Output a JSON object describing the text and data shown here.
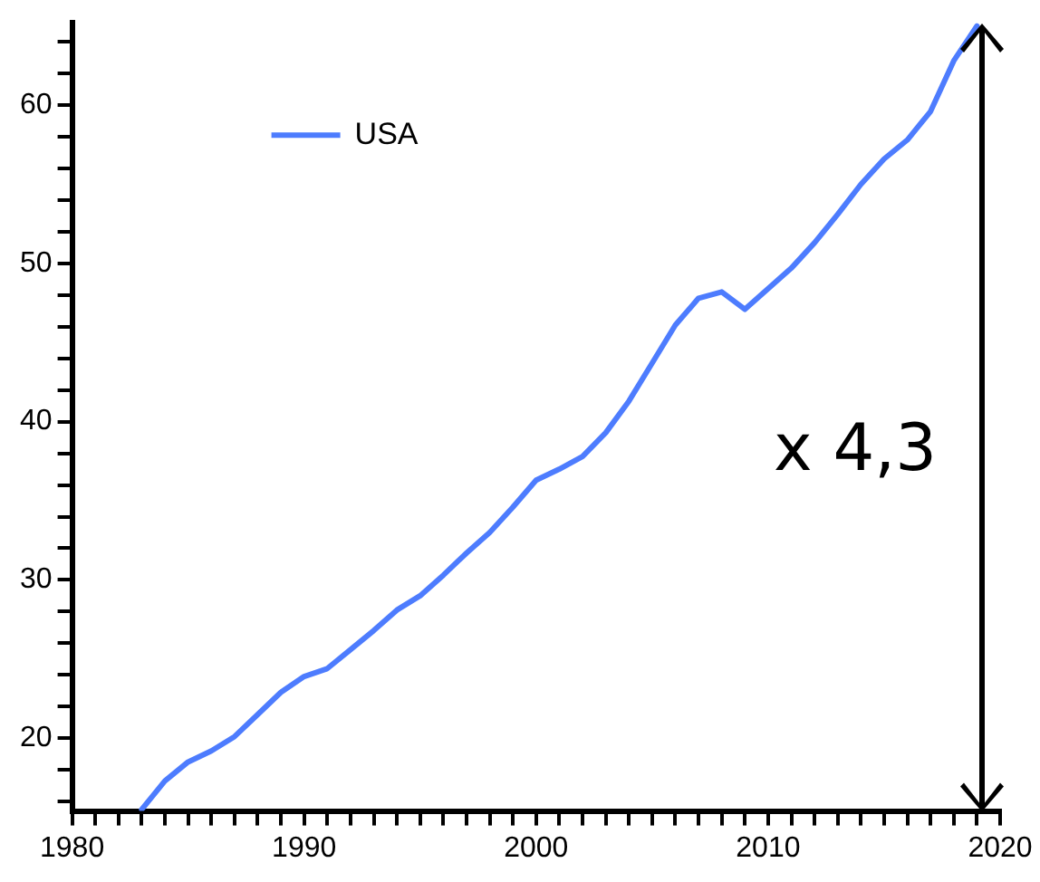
{
  "chart_data": {
    "type": "line",
    "x": [
      1983,
      1984,
      1985,
      1986,
      1987,
      1988,
      1989,
      1990,
      1991,
      1992,
      1993,
      1994,
      1995,
      1996,
      1997,
      1998,
      1999,
      2000,
      2001,
      2002,
      2003,
      2004,
      2005,
      2006,
      2007,
      2008,
      2009,
      2010,
      2011,
      2012,
      2013,
      2014,
      2015,
      2016,
      2017,
      2018,
      2019
    ],
    "series": [
      {
        "name": "USA",
        "color": "#4d7cfe",
        "values": [
          15.5,
          17.3,
          18.5,
          19.2,
          20.1,
          21.5,
          22.9,
          23.9,
          24.4,
          25.6,
          26.8,
          28.1,
          29.0,
          30.3,
          31.7,
          33.0,
          34.6,
          36.3,
          37.0,
          37.8,
          39.3,
          41.3,
          43.7,
          46.1,
          47.8,
          48.2,
          47.1,
          48.4,
          49.7,
          51.3,
          53.1,
          55.0,
          56.6,
          57.8,
          59.6,
          62.8,
          65.0
        ]
      }
    ],
    "xlim": [
      1980,
      2020
    ],
    "xticks": [
      1980,
      {
        "value": 1981,
        "label": null
      },
      {
        "value": 1982,
        "label": null
      },
      {
        "value": 1983,
        "label": null
      },
      {
        "value": 1984,
        "label": null
      },
      {
        "value": 1985,
        "label": null
      },
      {
        "value": 1986,
        "label": null
      },
      {
        "value": 1987,
        "label": null
      },
      {
        "value": 1988,
        "label": null
      },
      {
        "value": 1989,
        "label": null
      },
      1990,
      {
        "value": 1991,
        "label": null
      },
      {
        "value": 1992,
        "label": null
      },
      {
        "value": 1993,
        "label": null
      },
      {
        "value": 1994,
        "label": null
      },
      {
        "value": 1995,
        "label": null
      },
      {
        "value": 1996,
        "label": null
      },
      {
        "value": 1997,
        "label": null
      },
      {
        "value": 1998,
        "label": null
      },
      {
        "value": 1999,
        "label": null
      },
      2000,
      {
        "value": 2001,
        "label": null
      },
      {
        "value": 2002,
        "label": null
      },
      {
        "value": 2003,
        "label": null
      },
      {
        "value": 2004,
        "label": null
      },
      {
        "value": 2005,
        "label": null
      },
      {
        "value": 2006,
        "label": null
      },
      {
        "value": 2007,
        "label": null
      },
      {
        "value": 2008,
        "label": null
      },
      {
        "value": 2009,
        "label": null
      },
      2010,
      {
        "value": 2011,
        "label": null
      },
      {
        "value": 2012,
        "label": null
      },
      {
        "value": 2013,
        "label": null
      },
      {
        "value": 2014,
        "label": null
      },
      {
        "value": 2015,
        "label": null
      },
      {
        "value": 2016,
        "label": null
      },
      {
        "value": 2017,
        "label": null
      },
      {
        "value": 2018,
        "label": null
      },
      {
        "value": 2019,
        "label": null
      },
      2020
    ],
    "ylim": [
      15.4,
      65.2
    ],
    "yticks": [
      {
        "value": 16,
        "label": null
      },
      {
        "value": 18,
        "label": null
      },
      20,
      {
        "value": 22,
        "label": null
      },
      {
        "value": 24,
        "label": null
      },
      {
        "value": 26,
        "label": null
      },
      {
        "value": 28,
        "label": null
      },
      30,
      {
        "value": 32,
        "label": null
      },
      {
        "value": 34,
        "label": null
      },
      {
        "value": 36,
        "label": null
      },
      {
        "value": 38,
        "label": null
      },
      40,
      {
        "value": 42,
        "label": null
      },
      {
        "value": 44,
        "label": null
      },
      {
        "value": 46,
        "label": null
      },
      {
        "value": 48,
        "label": null
      },
      50,
      {
        "value": 52,
        "label": null
      },
      {
        "value": 54,
        "label": null
      },
      {
        "value": 56,
        "label": null
      },
      {
        "value": 58,
        "label": null
      },
      60,
      {
        "value": 62,
        "label": null
      },
      {
        "value": 64,
        "label": null
      }
    ],
    "annotations": [
      "x 4,3"
    ],
    "legend": "top left",
    "grid": false,
    "marker": "none",
    "line_style": "solid"
  }
}
